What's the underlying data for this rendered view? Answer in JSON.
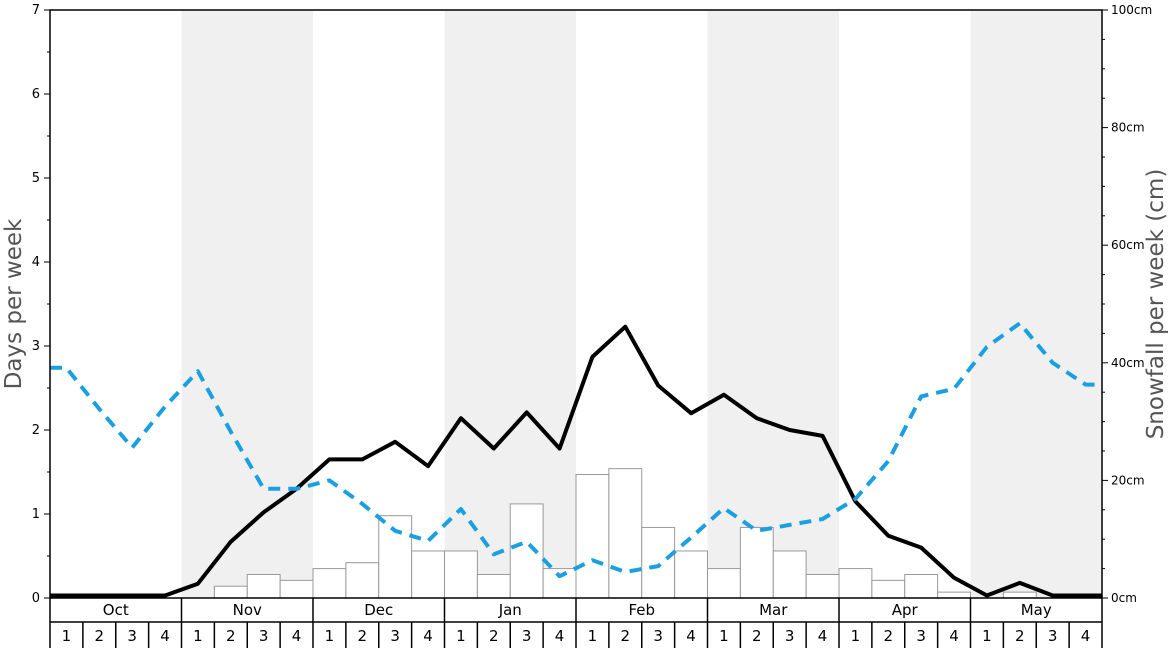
{
  "chart_data": {
    "type": "bar+line",
    "title": "",
    "ylabel_left": "Days per week",
    "ylabel_right": "Snowfall per week (cm)",
    "ylim_left": [
      0,
      7
    ],
    "ylim_right": [
      0,
      100
    ],
    "left_ticks": [
      "0",
      "1",
      "2",
      "3",
      "4",
      "5",
      "6",
      "7"
    ],
    "right_ticks": [
      "0cm",
      "20cm",
      "40cm",
      "60cm",
      "80cm",
      "100cm"
    ],
    "months": [
      "Oct",
      "Nov",
      "Dec",
      "Jan",
      "Feb",
      "Mar",
      "Apr",
      "May"
    ],
    "week_labels": [
      "1",
      "2",
      "3",
      "4"
    ],
    "shaded_months": [
      "Nov",
      "Jan",
      "Mar",
      "May"
    ],
    "colors": {
      "shade": "#f0f0f0",
      "solid_line": "#000000",
      "dashed_line": "#1aa0e0",
      "bar_stroke": "#999999",
      "bar_fill": "#ffffff"
    },
    "series": [
      {
        "kind": "bar",
        "axis": "right",
        "unit": "cm",
        "values": [
          0,
          0,
          0,
          0,
          0,
          2,
          4,
          3,
          5,
          6,
          14,
          8,
          8,
          4,
          16,
          5,
          21,
          22,
          12,
          8,
          5,
          12,
          8,
          4,
          5,
          3,
          4,
          1,
          0,
          1,
          0,
          0
        ]
      },
      {
        "kind": "line",
        "style": "solid",
        "axis": "left",
        "values": [
          0.03,
          0.03,
          0.03,
          0.03,
          0.17,
          0.67,
          1.02,
          1.3,
          1.65,
          1.65,
          1.86,
          1.57,
          2.14,
          1.78,
          2.21,
          1.78,
          2.87,
          3.23,
          2.53,
          2.2,
          2.42,
          2.14,
          2.0,
          1.93,
          1.15,
          0.74,
          0.6,
          0.24,
          0.03,
          0.18,
          0.03,
          0.03
        ]
      },
      {
        "kind": "line",
        "style": "dashed",
        "axis": "left",
        "values": [
          2.74,
          2.25,
          1.79,
          2.28,
          2.7,
          1.98,
          1.3,
          1.3,
          1.4,
          1.12,
          0.8,
          0.68,
          1.06,
          0.52,
          0.67,
          0.26,
          0.45,
          0.31,
          0.38,
          0.72,
          1.07,
          0.8,
          0.87,
          0.94,
          1.18,
          1.63,
          2.4,
          2.49,
          2.99,
          3.27,
          2.8,
          2.54
        ]
      }
    ]
  }
}
